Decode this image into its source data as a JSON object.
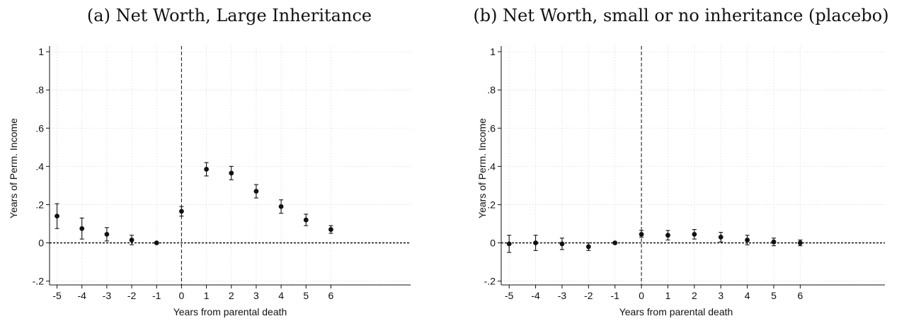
{
  "chart_data": [
    {
      "type": "scatter",
      "title": "(a) Net Worth, Large Inheritance",
      "xlabel": "Years from parental death",
      "ylabel": "Years of Perm. Income",
      "x_ticks": [
        "-5",
        "-4",
        "-3",
        "-2",
        "-1",
        "0",
        "1",
        "2",
        "3",
        "4",
        "5",
        "6"
      ],
      "y_ticks": [
        "-.2",
        "0",
        ".2",
        ".4",
        ".6",
        ".8",
        "1"
      ],
      "xlim": [
        -5.3,
        9.2
      ],
      "ylim": [
        -0.22,
        1.03
      ],
      "grid": true,
      "reference_lines": {
        "x_dashed": 0,
        "y_dotted": 0
      },
      "x": [
        -5,
        -4,
        -3,
        -2,
        -1,
        0,
        1,
        2,
        3,
        4,
        5,
        6
      ],
      "y": [
        0.14,
        0.075,
        0.045,
        0.015,
        0.0,
        0.165,
        0.385,
        0.365,
        0.27,
        0.19,
        0.12,
        0.07
      ],
      "ci_low": [
        0.075,
        0.02,
        0.01,
        -0.01,
        0.0,
        0.14,
        0.35,
        0.33,
        0.235,
        0.155,
        0.09,
        0.05
      ],
      "ci_high": [
        0.205,
        0.13,
        0.08,
        0.04,
        0.0,
        0.19,
        0.42,
        0.4,
        0.305,
        0.225,
        0.15,
        0.09
      ]
    },
    {
      "type": "scatter",
      "title": "(b) Net Worth, small or no inheritance (placebo)",
      "xlabel": "Years from parental death",
      "ylabel": "Years of Perm. Income",
      "x_ticks": [
        "-5",
        "-4",
        "-3",
        "-2",
        "-1",
        "0",
        "1",
        "2",
        "3",
        "4",
        "5",
        "6"
      ],
      "y_ticks": [
        "-.2",
        "0",
        ".2",
        ".4",
        ".6",
        ".8",
        "1"
      ],
      "xlim": [
        -5.3,
        9.2
      ],
      "ylim": [
        -0.22,
        1.03
      ],
      "grid": true,
      "reference_lines": {
        "x_dashed": 0,
        "y_dotted": 0
      },
      "x": [
        -5,
        -4,
        -3,
        -2,
        -1,
        0,
        1,
        2,
        3,
        4,
        5,
        6
      ],
      "y": [
        -0.005,
        0.0,
        -0.005,
        -0.02,
        0.0,
        0.045,
        0.04,
        0.045,
        0.03,
        0.015,
        0.005,
        0.0
      ],
      "ci_low": [
        -0.05,
        -0.04,
        -0.035,
        -0.04,
        0.0,
        0.03,
        0.015,
        0.02,
        0.005,
        -0.01,
        -0.015,
        -0.015
      ],
      "ci_high": [
        0.04,
        0.04,
        0.025,
        0.0,
        0.0,
        0.065,
        0.065,
        0.07,
        0.055,
        0.04,
        0.025,
        0.015
      ]
    }
  ]
}
